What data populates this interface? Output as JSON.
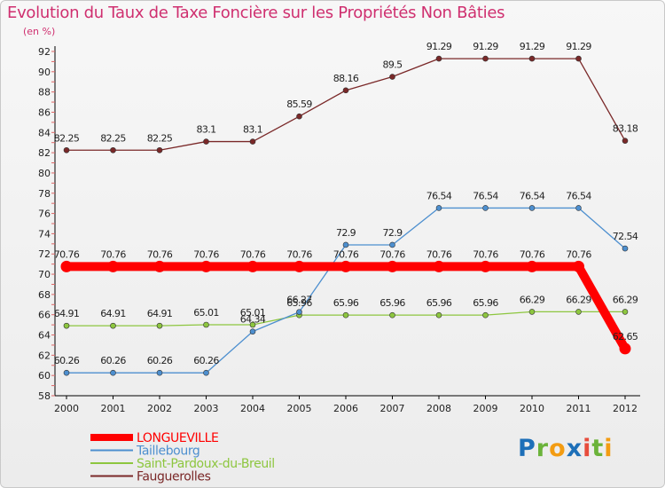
{
  "page": {
    "title": "Evolution du Taux de Taxe Foncière sur les Propriétés Non Bâties",
    "unit": "(en %)"
  },
  "logo": {
    "letters": [
      {
        "char": "P",
        "color": "#1d6fb8"
      },
      {
        "char": "r",
        "color": "#6bb33a"
      },
      {
        "char": "o",
        "color": "#f39c12"
      },
      {
        "char": "x",
        "color": "#1d6fb8"
      },
      {
        "char": "i",
        "color": "#e74c3c"
      },
      {
        "char": "t",
        "color": "#6bb33a"
      },
      {
        "char": "i",
        "color": "#f39c12"
      }
    ]
  },
  "chart_data": {
    "type": "line",
    "title": "Evolution du Taux de Taxe Foncière sur les Propriétés Non Bâties",
    "ylabel": "(en %)",
    "x": [
      "2000",
      "2001",
      "2002",
      "2003",
      "2004",
      "2005",
      "2006",
      "2007",
      "2008",
      "2009",
      "2010",
      "2011",
      "2012"
    ],
    "ylim": [
      58,
      92
    ],
    "yticks": [
      58,
      60,
      62,
      64,
      66,
      68,
      70,
      72,
      74,
      76,
      78,
      80,
      82,
      84,
      86,
      88,
      90,
      92
    ],
    "grid": false,
    "legend_position": "bottom-left",
    "series": [
      {
        "name": "LONGUEVILLE",
        "color": "#ff0000",
        "values": [
          70.76,
          70.76,
          70.76,
          70.76,
          70.76,
          70.76,
          70.76,
          70.76,
          70.76,
          70.76,
          70.76,
          70.76,
          62.65
        ],
        "labels": [
          "70.76",
          "70.76",
          "70.76",
          "70.76",
          "70.76",
          "70.76",
          "70.76",
          "70.76",
          "70.76",
          "70.76",
          "70.76",
          "70.76",
          "62.65"
        ]
      },
      {
        "name": "Taillebourg",
        "color": "#4d8fcf",
        "values": [
          60.26,
          60.26,
          60.26,
          60.26,
          64.34,
          66.27,
          72.9,
          72.9,
          76.54,
          76.54,
          76.54,
          76.54,
          72.54
        ],
        "labels": [
          "60.26",
          "60.26",
          "60.26",
          "60.26",
          "64.34",
          "66.27",
          "72.9",
          "72.9",
          "76.54",
          "76.54",
          "76.54",
          "76.54",
          "72.54"
        ]
      },
      {
        "name": "Saint-Pardoux-du-Breuil",
        "color": "#8dc63f",
        "values": [
          64.91,
          64.91,
          64.91,
          65.01,
          65.01,
          65.96,
          65.96,
          65.96,
          65.96,
          65.96,
          66.29,
          66.29,
          66.29
        ],
        "labels": [
          "64.91",
          "64.91",
          "64.91",
          "65.01",
          "65.01",
          "65.96",
          "65.96",
          "65.96",
          "65.96",
          "65.96",
          "66.29",
          "66.29",
          "66.29"
        ]
      },
      {
        "name": "Fauguerolles",
        "color": "#7a2828",
        "values": [
          82.25,
          82.25,
          82.25,
          83.1,
          83.1,
          85.59,
          88.16,
          89.5,
          91.29,
          91.29,
          91.29,
          91.29,
          83.18
        ],
        "labels": [
          "82.25",
          "82.25",
          "82.25",
          "83.1",
          "83.1",
          "85.59",
          "88.16",
          "89.5",
          "91.29",
          "91.29",
          "91.29",
          "91.29",
          "83.18"
        ]
      }
    ]
  }
}
